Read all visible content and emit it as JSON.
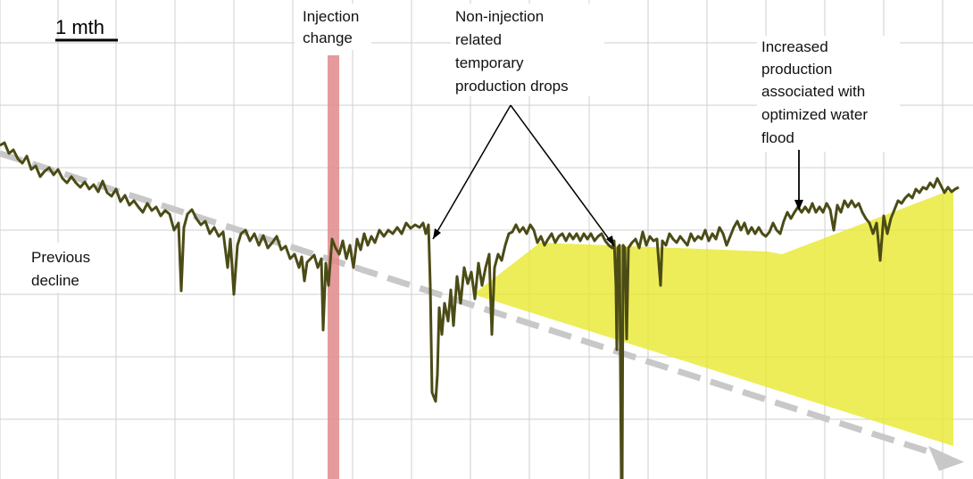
{
  "chart_data": {
    "type": "line",
    "title": "",
    "xlabel": "",
    "ylabel": "",
    "grid": true,
    "scale_bar_label": "1 mth",
    "annotations": {
      "injection_change": [
        "Injection",
        "change"
      ],
      "non_injection": [
        "Non-injection",
        "related",
        "temporary",
        "production drops"
      ],
      "increased": [
        "Increased",
        "production",
        "associated with",
        "optimized water",
        "flood"
      ],
      "previous_decline": [
        "Previous",
        "decline"
      ]
    },
    "series": [
      {
        "values": [
          [
            0,
            163
          ],
          [
            5,
            160
          ],
          [
            10,
            172
          ],
          [
            15,
            168
          ],
          [
            20,
            178
          ],
          [
            25,
            183
          ],
          [
            30,
            175
          ],
          [
            35,
            190
          ],
          [
            40,
            186
          ],
          [
            45,
            198
          ],
          [
            50,
            192
          ],
          [
            55,
            188
          ],
          [
            60,
            196
          ],
          [
            65,
            190
          ],
          [
            70,
            200
          ],
          [
            75,
            205
          ],
          [
            80,
            198
          ],
          [
            85,
            205
          ],
          [
            90,
            210
          ],
          [
            95,
            204
          ],
          [
            100,
            212
          ],
          [
            105,
            207
          ],
          [
            110,
            215
          ],
          [
            115,
            203
          ],
          [
            120,
            216
          ],
          [
            125,
            220
          ],
          [
            130,
            212
          ],
          [
            135,
            226
          ],
          [
            140,
            219
          ],
          [
            145,
            230
          ],
          [
            150,
            225
          ],
          [
            155,
            232
          ],
          [
            160,
            238
          ],
          [
            165,
            228
          ],
          [
            170,
            236
          ],
          [
            175,
            232
          ],
          [
            180,
            242
          ],
          [
            185,
            236
          ],
          [
            190,
            240
          ],
          [
            195,
            258
          ],
          [
            200,
            250
          ],
          [
            203,
            326
          ],
          [
            206,
            255
          ],
          [
            210,
            240
          ],
          [
            215,
            235
          ],
          [
            220,
            245
          ],
          [
            225,
            252
          ],
          [
            230,
            248
          ],
          [
            235,
            262
          ],
          [
            240,
            255
          ],
          [
            245,
            265
          ],
          [
            250,
            260
          ],
          [
            255,
            300
          ],
          [
            258,
            268
          ],
          [
            262,
            330
          ],
          [
            266,
            275
          ],
          [
            270,
            262
          ],
          [
            275,
            258
          ],
          [
            280,
            270
          ],
          [
            285,
            262
          ],
          [
            290,
            275
          ],
          [
            295,
            264
          ],
          [
            300,
            278
          ],
          [
            305,
            272
          ],
          [
            310,
            265
          ],
          [
            315,
            280
          ],
          [
            320,
            276
          ],
          [
            325,
            290
          ],
          [
            330,
            285
          ],
          [
            335,
            300
          ],
          [
            338,
            288
          ],
          [
            341,
            315
          ],
          [
            344,
            294
          ],
          [
            348,
            290
          ],
          [
            352,
            286
          ],
          [
            356,
            300
          ],
          [
            360,
            290
          ],
          [
            362,
            370
          ],
          [
            365,
            295
          ],
          [
            368,
            320
          ],
          [
            372,
            268
          ],
          [
            376,
            278
          ],
          [
            380,
            285
          ],
          [
            384,
            270
          ],
          [
            388,
            290
          ],
          [
            392,
            275
          ],
          [
            396,
            300
          ],
          [
            400,
            268
          ],
          [
            404,
            280
          ],
          [
            408,
            262
          ],
          [
            412,
            275
          ],
          [
            416,
            265
          ],
          [
            420,
            272
          ],
          [
            425,
            258
          ],
          [
            430,
            265
          ],
          [
            435,
            258
          ],
          [
            440,
            262
          ],
          [
            445,
            255
          ],
          [
            450,
            262
          ],
          [
            455,
            250
          ],
          [
            460,
            256
          ],
          [
            465,
            252
          ],
          [
            470,
            255
          ],
          [
            474,
            250
          ],
          [
            477,
            262
          ],
          [
            480,
            252
          ],
          [
            482,
            320
          ],
          [
            484,
            440
          ],
          [
            486,
            445
          ],
          [
            488,
            450
          ],
          [
            490,
            420
          ],
          [
            492,
            345
          ],
          [
            495,
            375
          ],
          [
            498,
            340
          ],
          [
            502,
            360
          ],
          [
            505,
            325
          ],
          [
            508,
            365
          ],
          [
            512,
            310
          ],
          [
            516,
            340
          ],
          [
            520,
            300
          ],
          [
            524,
            318
          ],
          [
            528,
            305
          ],
          [
            532,
            335
          ],
          [
            536,
            295
          ],
          [
            540,
            320
          ],
          [
            544,
            300
          ],
          [
            548,
            285
          ],
          [
            551,
            375
          ],
          [
            554,
            300
          ],
          [
            558,
            285
          ],
          [
            562,
            292
          ],
          [
            566,
            275
          ],
          [
            570,
            262
          ],
          [
            574,
            260
          ],
          [
            578,
            252
          ],
          [
            582,
            260
          ],
          [
            586,
            255
          ],
          [
            590,
            262
          ],
          [
            594,
            252
          ],
          [
            598,
            258
          ],
          [
            602,
            272
          ],
          [
            606,
            265
          ],
          [
            610,
            275
          ],
          [
            614,
            268
          ],
          [
            618,
            262
          ],
          [
            622,
            272
          ],
          [
            626,
            265
          ],
          [
            630,
            262
          ],
          [
            634,
            270
          ],
          [
            638,
            262
          ],
          [
            642,
            268
          ],
          [
            646,
            262
          ],
          [
            650,
            270
          ],
          [
            654,
            262
          ],
          [
            658,
            268
          ],
          [
            662,
            262
          ],
          [
            666,
            270
          ],
          [
            670,
            265
          ],
          [
            674,
            262
          ],
          [
            678,
            270
          ],
          [
            682,
            275
          ],
          [
            686,
            278
          ],
          [
            688,
            270
          ],
          [
            690,
            320
          ],
          [
            691,
            392
          ],
          [
            692,
            278
          ],
          [
            694,
            275
          ],
          [
            696,
            537
          ],
          [
            697,
            537
          ],
          [
            698,
            275
          ],
          [
            700,
            278
          ],
          [
            702,
            380
          ],
          [
            704,
            278
          ],
          [
            708,
            272
          ],
          [
            712,
            268
          ],
          [
            716,
            278
          ],
          [
            720,
            260
          ],
          [
            724,
            275
          ],
          [
            728,
            265
          ],
          [
            732,
            270
          ],
          [
            736,
            268
          ],
          [
            740,
            320
          ],
          [
            742,
            270
          ],
          [
            746,
            275
          ],
          [
            750,
            262
          ],
          [
            754,
            268
          ],
          [
            758,
            272
          ],
          [
            762,
            265
          ],
          [
            766,
            270
          ],
          [
            770,
            275
          ],
          [
            774,
            262
          ],
          [
            778,
            270
          ],
          [
            782,
            265
          ],
          [
            786,
            268
          ],
          [
            790,
            258
          ],
          [
            794,
            270
          ],
          [
            798,
            262
          ],
          [
            802,
            268
          ],
          [
            806,
            255
          ],
          [
            810,
            262
          ],
          [
            814,
            275
          ],
          [
            818,
            265
          ],
          [
            822,
            255
          ],
          [
            826,
            248
          ],
          [
            830,
            258
          ],
          [
            834,
            250
          ],
          [
            838,
            262
          ],
          [
            842,
            255
          ],
          [
            846,
            262
          ],
          [
            850,
            255
          ],
          [
            854,
            262
          ],
          [
            858,
            265
          ],
          [
            862,
            260
          ],
          [
            866,
            250
          ],
          [
            870,
            258
          ],
          [
            874,
            262
          ],
          [
            878,
            248
          ],
          [
            882,
            238
          ],
          [
            886,
            245
          ],
          [
            890,
            238
          ],
          [
            894,
            232
          ],
          [
            898,
            238
          ],
          [
            902,
            232
          ],
          [
            906,
            238
          ],
          [
            910,
            228
          ],
          [
            914,
            238
          ],
          [
            918,
            232
          ],
          [
            922,
            238
          ],
          [
            926,
            228
          ],
          [
            930,
            235
          ],
          [
            934,
            258
          ],
          [
            938,
            230
          ],
          [
            942,
            238
          ],
          [
            946,
            225
          ],
          [
            950,
            232
          ],
          [
            954,
            225
          ],
          [
            958,
            232
          ],
          [
            962,
            228
          ],
          [
            966,
            238
          ],
          [
            970,
            245
          ],
          [
            974,
            250
          ],
          [
            978,
            262
          ],
          [
            982,
            250
          ],
          [
            986,
            292
          ],
          [
            990,
            242
          ],
          [
            994,
            262
          ],
          [
            998,
            245
          ],
          [
            1002,
            235
          ],
          [
            1006,
            225
          ],
          [
            1010,
            228
          ],
          [
            1014,
            222
          ],
          [
            1018,
            218
          ],
          [
            1022,
            222
          ],
          [
            1026,
            212
          ],
          [
            1030,
            216
          ],
          [
            1034,
            210
          ],
          [
            1038,
            212
          ],
          [
            1042,
            205
          ],
          [
            1046,
            210
          ],
          [
            1050,
            200
          ],
          [
            1054,
            208
          ],
          [
            1058,
            216
          ],
          [
            1062,
            210
          ],
          [
            1066,
            215
          ],
          [
            1070,
            212
          ],
          [
            1074,
            210
          ]
        ],
        "color": "#4b4b16"
      }
    ],
    "colors": {
      "production_line": "#4b4b16",
      "injection_band": "#e08a8a",
      "gain_fill": "#e8e82a",
      "decline_arrow": "#c8c8c8",
      "grid": "#cfcfcf"
    }
  }
}
